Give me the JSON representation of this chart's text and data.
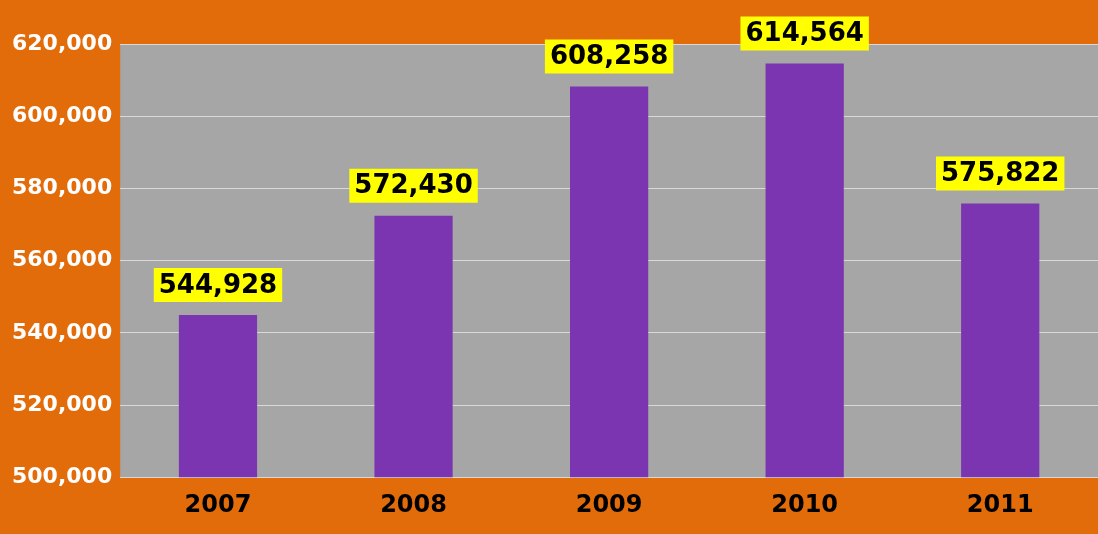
{
  "chart_data": {
    "type": "bar",
    "categories": [
      "2007",
      "2008",
      "2009",
      "2010",
      "2011"
    ],
    "values": [
      544928,
      572430,
      608258,
      614564,
      575822
    ],
    "value_labels": [
      "544,928",
      "572,430",
      "608,258",
      "614,564",
      "575,822"
    ],
    "color": "#7b35b0",
    "ylim": [
      500000,
      620000
    ],
    "yticks": [
      {
        "value": 500000,
        "label": "500,000"
      },
      {
        "value": 520000,
        "label": "520,000"
      },
      {
        "value": 540000,
        "label": "540,000"
      },
      {
        "value": 560000,
        "label": "560,000"
      },
      {
        "value": 580000,
        "label": "580,000"
      },
      {
        "value": 600000,
        "label": "600,000"
      },
      {
        "value": 620000,
        "label": "620,000"
      }
    ],
    "grid": "y"
  }
}
